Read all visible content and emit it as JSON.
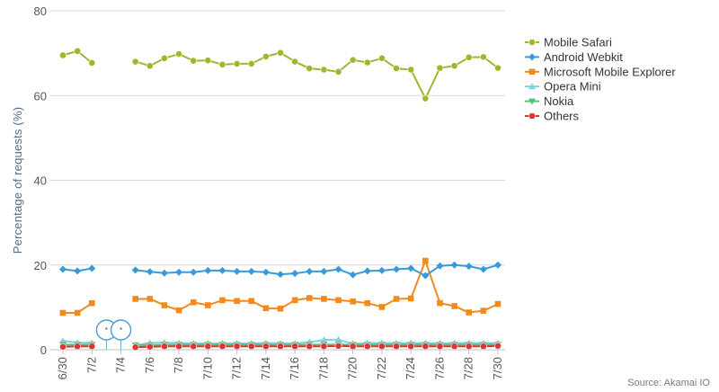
{
  "chart_data": {
    "type": "line",
    "title": "",
    "xlabel": "",
    "ylabel": "Percentage of requests (%)",
    "ylim": [
      0,
      80
    ],
    "yticks": [
      0,
      20,
      40,
      60,
      80
    ],
    "grid": "horizontal",
    "legend": "right",
    "x": [
      "6/30",
      "7/1",
      "7/2",
      "7/3",
      "7/4",
      "7/5",
      "7/6",
      "7/7",
      "7/8",
      "7/9",
      "7/10",
      "7/11",
      "7/12",
      "7/13",
      "7/14",
      "7/15",
      "7/16",
      "7/17",
      "7/18",
      "7/19",
      "7/20",
      "7/21",
      "7/22",
      "7/23",
      "7/24",
      "7/25",
      "7/26",
      "7/27",
      "7/28",
      "7/29",
      "7/30"
    ],
    "xtick_labels": [
      "6/30",
      "7/2",
      "7/4",
      "7/6",
      "7/8",
      "7/10",
      "7/12",
      "7/14",
      "7/16",
      "7/18",
      "7/20",
      "7/22",
      "7/24",
      "7/26",
      "7/28",
      "7/30"
    ],
    "series": [
      {
        "name": "Mobile Safari",
        "color": "#9cb82d",
        "marker": "circle",
        "values": [
          69.5,
          70.5,
          67.7,
          null,
          null,
          68.0,
          67.0,
          68.8,
          69.8,
          68.2,
          68.3,
          67.3,
          67.5,
          67.5,
          69.2,
          70.1,
          68.0,
          66.4,
          66.1,
          65.6,
          68.4,
          67.8,
          68.8,
          66.4,
          66.1,
          59.3,
          66.5,
          67.0,
          69.0,
          69.1,
          66.5
        ]
      },
      {
        "name": "Android Webkit",
        "color": "#3a9ad9",
        "marker": "diamond",
        "values": [
          19.0,
          18.6,
          19.2,
          null,
          null,
          18.8,
          18.4,
          18.1,
          18.3,
          18.3,
          18.7,
          18.7,
          18.5,
          18.5,
          18.3,
          17.8,
          18.0,
          18.5,
          18.5,
          19.0,
          17.7,
          18.6,
          18.7,
          19.0,
          19.2,
          17.5,
          19.8,
          20.0,
          19.7,
          19.0,
          20.0
        ]
      },
      {
        "name": "Microsoft Mobile Explorer",
        "color": "#f28a1e",
        "marker": "square",
        "values": [
          8.7,
          8.7,
          11.0,
          null,
          null,
          12.0,
          12.0,
          10.5,
          9.3,
          11.2,
          10.5,
          11.7,
          11.5,
          11.5,
          9.8,
          9.7,
          11.7,
          12.2,
          12.0,
          11.7,
          11.4,
          11.0,
          10.1,
          12.0,
          12.1,
          21.0,
          11.0,
          10.3,
          8.8,
          9.2,
          10.8
        ]
      },
      {
        "name": "Opera Mini",
        "color": "#7fd0e3",
        "marker": "triangle-up",
        "values": [
          2.1,
          1.7,
          1.6,
          null,
          null,
          1.1,
          1.6,
          1.7,
          1.6,
          1.5,
          1.5,
          1.5,
          1.5,
          1.5,
          1.6,
          1.5,
          1.5,
          1.8,
          2.3,
          2.4,
          1.4,
          1.6,
          1.6,
          1.6,
          1.6,
          1.6,
          1.5,
          1.6,
          1.6,
          1.6,
          1.6
        ]
      },
      {
        "name": "Nokia",
        "color": "#54c07a",
        "marker": "triangle-down",
        "values": [
          1.2,
          1.2,
          1.2,
          null,
          null,
          1.1,
          1.1,
          1.2,
          1.2,
          1.2,
          1.2,
          1.2,
          1.2,
          1.2,
          1.2,
          1.2,
          1.2,
          1.2,
          1.2,
          1.2,
          1.2,
          1.2,
          1.2,
          1.2,
          1.2,
          1.2,
          1.2,
          1.2,
          1.2,
          1.2,
          1.2
        ]
      },
      {
        "name": "Others",
        "color": "#e03333",
        "marker": "circle",
        "values": [
          0.7,
          0.8,
          0.8,
          null,
          null,
          0.6,
          0.7,
          0.8,
          0.8,
          0.8,
          0.8,
          0.8,
          0.8,
          0.8,
          0.8,
          0.8,
          0.8,
          0.8,
          0.8,
          0.9,
          0.8,
          0.8,
          0.8,
          0.8,
          0.8,
          0.8,
          0.8,
          0.8,
          0.8,
          0.8,
          0.9
        ]
      }
    ],
    "annotations": [
      {
        "x": "7/3",
        "symbol": "*",
        "shape": "flag"
      },
      {
        "x": "7/4",
        "symbol": "*",
        "shape": "flag"
      }
    ],
    "source": "Source: Akamai IO"
  }
}
